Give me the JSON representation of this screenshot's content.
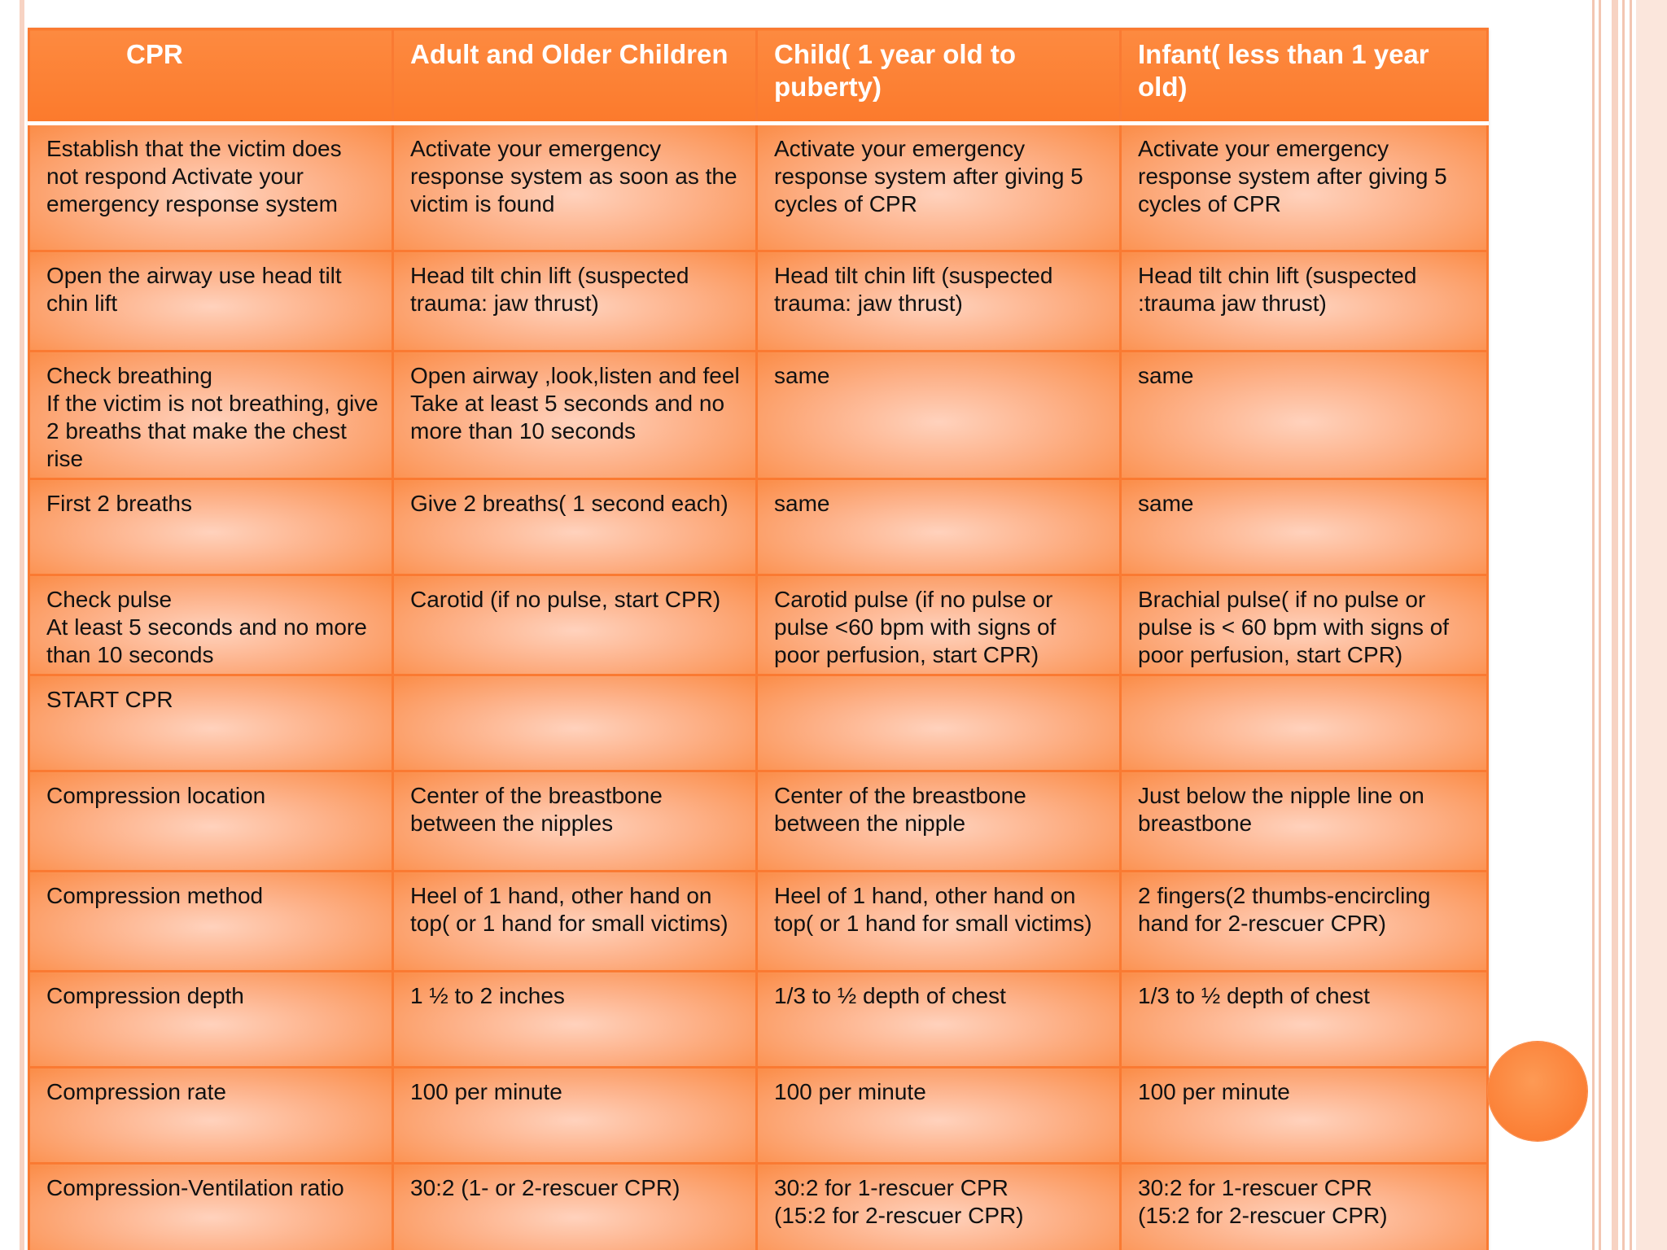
{
  "colors": {
    "header_bg": "#fc7a2c",
    "border": "#fa7a32",
    "cell_center": "#ffd2bd",
    "cell_edge": "#fb8d48",
    "accent_circle": "#fb7f35"
  },
  "table": {
    "headers": [
      "CPR",
      "Adult and Older Children",
      "Child( 1 year old to puberty)",
      "Infant( less than 1 year old)"
    ],
    "rows": [
      [
        "Establish that the victim does not respond Activate your emergency response system",
        "Activate your emergency response system as soon as the victim is found",
        "Activate your emergency response system after giving 5 cycles of CPR",
        "Activate your emergency response system after giving 5 cycles of CPR"
      ],
      [
        "Open the airway  use head tilt chin lift",
        "  Head tilt chin lift (suspected trauma: jaw thrust)",
        "Head tilt chin lift (suspected trauma: jaw thrust)",
        "Head tilt chin lift (suspected :trauma jaw thrust)"
      ],
      [
        "Check breathing\nIf the victim is not breathing, give 2 breaths that make the chest rise",
        "Open airway ,look,listen and feel\nTake at least 5 seconds and no more than 10 seconds",
        "same",
        "same"
      ],
      [
        "First 2 breaths",
        "Give 2 breaths( 1 second each)",
        "same",
        "same"
      ],
      [
        "Check pulse\nAt least 5 seconds and no more than 10 seconds",
        "Carotid (if no pulse, start CPR)",
        "Carotid pulse (if no pulse or pulse <60 bpm with signs of poor perfusion, start CPR)",
        "Brachial pulse( if no pulse or pulse is < 60 bpm with signs of poor perfusion, start CPR)"
      ],
      [
        "START CPR",
        "",
        "",
        ""
      ],
      [
        "Compression location",
        "Center of the breastbone between the nipples",
        "Center of the breastbone between the nipple",
        "Just below the nipple line on breastbone"
      ],
      [
        "Compression method",
        "Heel of 1 hand, other hand on top( or 1 hand for small victims)",
        "Heel of 1 hand, other hand on top( or 1 hand for small victims)",
        "2 fingers(2 thumbs-encircling hand for 2-rescuer CPR)"
      ],
      [
        "Compression depth",
        "1 ½ to 2 inches",
        "1/3 to ½ depth of chest",
        "1/3 to ½ depth of chest"
      ],
      [
        "Compression rate",
        "100 per minute",
        "100 per minute",
        "100 per minute"
      ],
      [
        "Compression-Ventilation ratio",
        "30:2 (1- or 2-rescuer CPR)",
        "30:2 for 1-rescuer CPR\n(15:2 for 2-rescuer CPR)",
        "30:2 for 1-rescuer CPR\n(15:2 for 2-rescuer CPR)"
      ]
    ]
  }
}
